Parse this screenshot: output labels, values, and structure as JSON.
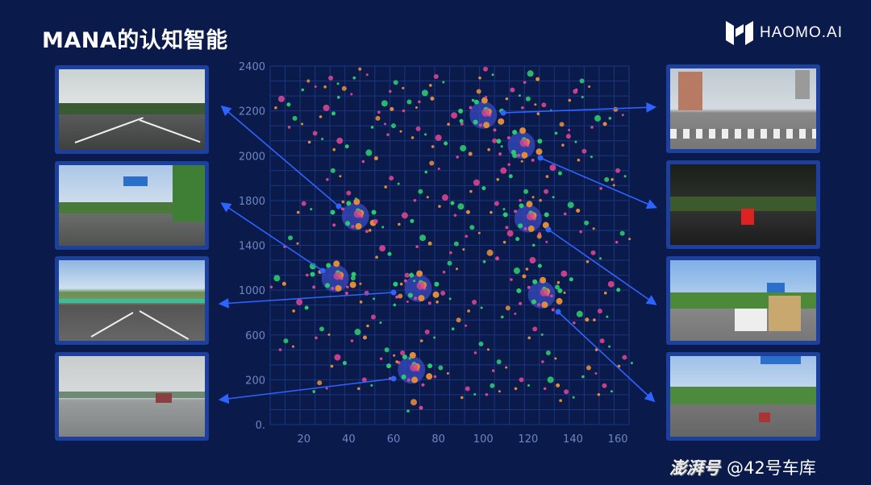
{
  "slide": {
    "title": "MANA的认知智能"
  },
  "logo": {
    "text": "HAOMO.AI",
    "icon": "haomo-logo-icon"
  },
  "watermark": {
    "brand": "澎湃号",
    "handle": "@42号车库"
  },
  "colors": {
    "background": "#0a1a4b",
    "grid": "#1c3580",
    "pink": "#d8458f",
    "green": "#2bc96f",
    "orange": "#e08b3c",
    "arrow": "#2f63ff",
    "frame": "#1d3f9e"
  },
  "thumbnails": {
    "left": [
      {
        "scene": "highway-overcast"
      },
      {
        "scene": "road-with-sign"
      },
      {
        "scene": "mountain-highway"
      },
      {
        "scene": "foggy-highway"
      }
    ],
    "right": [
      {
        "scene": "city-crosswalk"
      },
      {
        "scene": "night-rain"
      },
      {
        "scene": "traffic-with-truck"
      },
      {
        "scene": "urban-road-sign"
      }
    ]
  },
  "chart_data": {
    "type": "scatter",
    "xlim": [
      5,
      165
    ],
    "ylim": [
      0,
      2400
    ],
    "x_ticks": [
      "20",
      "40",
      "60",
      "80",
      "100",
      "120",
      "140",
      "160"
    ],
    "x_tick_values": [
      20,
      40,
      60,
      80,
      100,
      120,
      140,
      160
    ],
    "y_ticks": [
      "0.",
      "200",
      "600",
      "1000",
      "1400",
      "1800",
      "2000",
      "2200",
      "2400"
    ],
    "grid": true,
    "palette": [
      "#d8458f",
      "#2bc96f",
      "#e08b3c"
    ],
    "clusters": [
      {
        "x": 100,
        "y": 2072
      },
      {
        "x": 117,
        "y": 1870
      },
      {
        "x": 43,
        "y": 1394
      },
      {
        "x": 120,
        "y": 1378
      },
      {
        "x": 34,
        "y": 979
      },
      {
        "x": 71,
        "y": 913
      },
      {
        "x": 126,
        "y": 869
      },
      {
        "x": 68,
        "y": 366
      }
    ],
    "points": [
      [
        10,
        2180,
        4,
        0
      ],
      [
        14,
        1250,
        3,
        1
      ],
      [
        18,
        820,
        4,
        0
      ],
      [
        22,
        2300,
        2,
        2
      ],
      [
        25,
        1950,
        3,
        0
      ],
      [
        28,
        640,
        3,
        1
      ],
      [
        30,
        2120,
        4,
        0
      ],
      [
        33,
        1700,
        3,
        1
      ],
      [
        35,
        450,
        4,
        0
      ],
      [
        38,
        2250,
        3,
        2
      ],
      [
        40,
        1550,
        3,
        0
      ],
      [
        42,
        980,
        3,
        1
      ],
      [
        45,
        2380,
        2,
        2
      ],
      [
        47,
        300,
        3,
        0
      ],
      [
        49,
        1820,
        4,
        1
      ],
      [
        51,
        720,
        3,
        0
      ],
      [
        53,
        2050,
        3,
        2
      ],
      [
        55,
        1180,
        4,
        0
      ],
      [
        57,
        500,
        3,
        1
      ],
      [
        59,
        1650,
        3,
        0
      ],
      [
        61,
        2290,
        3,
        1
      ],
      [
        63,
        860,
        3,
        2
      ],
      [
        65,
        1400,
        4,
        0
      ],
      [
        67,
        2160,
        3,
        1
      ],
      [
        69,
        150,
        4,
        2
      ],
      [
        71,
        1980,
        3,
        0
      ],
      [
        73,
        1250,
        4,
        1
      ],
      [
        75,
        620,
        3,
        0
      ],
      [
        77,
        1750,
        3,
        2
      ],
      [
        79,
        2330,
        3,
        0
      ],
      [
        81,
        380,
        3,
        1
      ],
      [
        83,
        1520,
        4,
        0
      ],
      [
        85,
        1080,
        3,
        1
      ],
      [
        87,
        2070,
        4,
        0
      ],
      [
        89,
        700,
        3,
        2
      ],
      [
        91,
        1850,
        4,
        1
      ],
      [
        93,
        240,
        3,
        0
      ],
      [
        95,
        1320,
        3,
        1
      ],
      [
        97,
        1620,
        4,
        0
      ],
      [
        99,
        540,
        3,
        1
      ],
      [
        101,
        2380,
        3,
        0
      ],
      [
        103,
        1150,
        4,
        2
      ],
      [
        105,
        1900,
        3,
        0
      ],
      [
        107,
        420,
        3,
        1
      ],
      [
        109,
        1700,
        4,
        0
      ],
      [
        111,
        780,
        3,
        2
      ],
      [
        113,
        2240,
        3,
        0
      ],
      [
        115,
        1030,
        4,
        1
      ],
      [
        117,
        300,
        3,
        0
      ],
      [
        119,
        1560,
        3,
        1
      ],
      [
        121,
        2350,
        4,
        1
      ],
      [
        123,
        640,
        3,
        0
      ],
      [
        125,
        1260,
        3,
        2
      ],
      [
        127,
        2140,
        3,
        0
      ],
      [
        129,
        480,
        3,
        1
      ],
      [
        131,
        1720,
        4,
        0
      ],
      [
        133,
        920,
        3,
        1
      ],
      [
        135,
        2010,
        3,
        2
      ],
      [
        137,
        220,
        3,
        0
      ],
      [
        139,
        1470,
        4,
        1
      ],
      [
        141,
        2230,
        3,
        0
      ],
      [
        143,
        740,
        4,
        1
      ],
      [
        145,
        1830,
        3,
        0
      ],
      [
        147,
        380,
        3,
        2
      ],
      [
        149,
        1150,
        3,
        0
      ],
      [
        151,
        2050,
        4,
        1
      ],
      [
        153,
        560,
        3,
        0
      ],
      [
        155,
        1640,
        3,
        1
      ],
      [
        157,
        940,
        4,
        0
      ],
      [
        159,
        2110,
        3,
        2
      ],
      [
        12,
        560,
        3,
        1
      ],
      [
        20,
        1480,
        3,
        0
      ],
      [
        27,
        280,
        3,
        2
      ],
      [
        36,
        1900,
        4,
        0
      ],
      [
        44,
        620,
        4,
        1
      ],
      [
        52,
        1360,
        3,
        0
      ],
      [
        60,
        2000,
        3,
        1
      ],
      [
        66,
        1000,
        3,
        0
      ],
      [
        74,
        2220,
        4,
        1
      ],
      [
        82,
        880,
        3,
        0
      ],
      [
        90,
        1460,
        4,
        1
      ],
      [
        98,
        2230,
        3,
        2
      ],
      [
        106,
        1480,
        3,
        0
      ],
      [
        114,
        1800,
        3,
        1
      ],
      [
        122,
        1100,
        4,
        0
      ],
      [
        130,
        300,
        4,
        1
      ],
      [
        138,
        1930,
        3,
        0
      ],
      [
        146,
        1350,
        3,
        1
      ],
      [
        154,
        260,
        3,
        0
      ],
      [
        162,
        1280,
        3,
        1
      ],
      [
        16,
        2050,
        3,
        1
      ],
      [
        24,
        1060,
        4,
        1
      ],
      [
        32,
        2320,
        3,
        0
      ],
      [
        48,
        880,
        3,
        0
      ],
      [
        56,
        2150,
        4,
        1
      ],
      [
        64,
        480,
        3,
        0
      ],
      [
        72,
        1560,
        3,
        1
      ],
      [
        80,
        1920,
        4,
        0
      ],
      [
        88,
        1210,
        3,
        1
      ],
      [
        96,
        820,
        3,
        0
      ],
      [
        104,
        260,
        3,
        1
      ],
      [
        112,
        1280,
        4,
        0
      ],
      [
        120,
        2180,
        3,
        1
      ],
      [
        128,
        1560,
        3,
        0
      ],
      [
        136,
        1010,
        4,
        0
      ],
      [
        144,
        2300,
        3,
        1
      ],
      [
        152,
        760,
        3,
        0
      ],
      [
        160,
        1700,
        3,
        0
      ],
      [
        8,
        980,
        4,
        1
      ],
      [
        163,
        450,
        3,
        0
      ]
    ]
  }
}
